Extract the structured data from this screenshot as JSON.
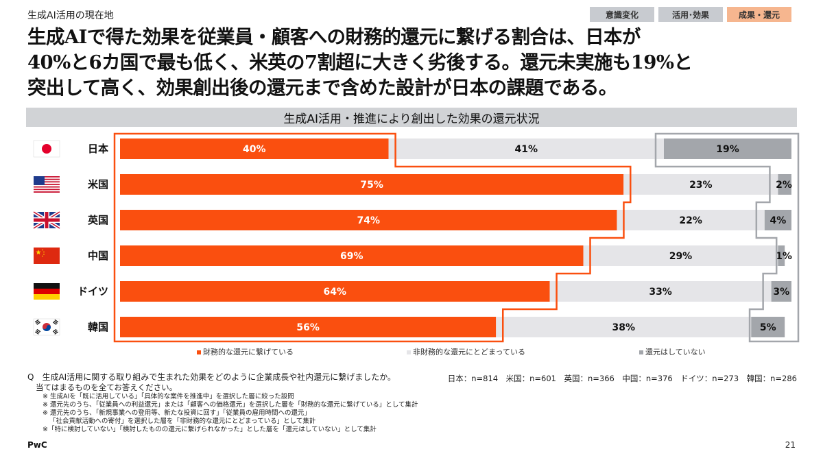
{
  "header": {
    "section_label": "生成AI活用の現在地",
    "tabs": [
      {
        "label": "意識変化",
        "active": false
      },
      {
        "label": "活用･効果",
        "active": false
      },
      {
        "label": "成果・還元",
        "active": true
      }
    ]
  },
  "headline": {
    "lines": [
      "生成AIで得た効果を従業員・顧客への財務的還元に繋げる割合は、日本が",
      "40%と6カ国で最も低く、米英の7割超に大きく劣後する。還元未実施も19%と",
      "突出して高く、効果創出後の還元まで含めた設計が日本の課題である。"
    ]
  },
  "chart_data": {
    "type": "bar",
    "orientation": "horizontal",
    "stacked": true,
    "title": "生成AI活用・推進により創出した効果の還元状況",
    "categories": [
      "日本",
      "米国",
      "英国",
      "中国",
      "ドイツ",
      "韓国"
    ],
    "flags": [
      "japan-flag-icon",
      "usa-flag-icon",
      "uk-flag-icon",
      "china-flag-icon",
      "germany-flag-icon",
      "korea-flag-icon"
    ],
    "series": [
      {
        "name": "財務的な還元に繋げている",
        "color": "#fa4f0f",
        "label_color": "#ffffff",
        "values": [
          40,
          75,
          74,
          69,
          64,
          56
        ]
      },
      {
        "name": "非財務的な還元にとどまっている",
        "color": "#e5e5e8",
        "label_color": "#111111",
        "values": [
          41,
          23,
          22,
          29,
          33,
          38
        ]
      },
      {
        "name": "還元はしていない",
        "color": "#a3a6ab",
        "label_color": "#111111",
        "values": [
          19,
          2,
          4,
          1,
          3,
          5
        ]
      }
    ],
    "value_suffix": "%",
    "xlim": [
      0,
      100
    ],
    "legend_position": "bottom",
    "highlight_colors": {
      "financial_outline": "#fa4f0f",
      "none_outline": "#a3a6ab"
    }
  },
  "notes": {
    "question_prefix": "Q",
    "question_line1": "生成AI活用に関する取り組みで生まれた効果をどのように企業成長や社内還元に繋げましたか。",
    "question_line2": "当てはまるものを全てお答えください。",
    "footnotes": [
      "※ 生成AIを「既に活用している」「具体的な案件を推進中」を選択した層に絞った設問",
      "※ 還元先のうち、「従業員への利益還元」または「顧客への価格還元」を選択した層を「財務的な還元に繋げている」として集計",
      "※ 還元先のうち、「新規事業への登用等、新たな投資に回す」「従業員の雇用時間への還元」",
      "「社会貢献活動への寄付」を選択した層を「非財務的な還元にとどまっている」として集計",
      "※「特に検討していない」「検討したものの還元に繋げられなかった」とした層を「還元はしていない」として集計"
    ],
    "sample_sizes": "日本：n=814　米国：n=601　英国：n=366　中国：n=376　ドイツ：n=273　韓国：n=286"
  },
  "footer": {
    "brand": "PwC",
    "page_number": "21"
  }
}
